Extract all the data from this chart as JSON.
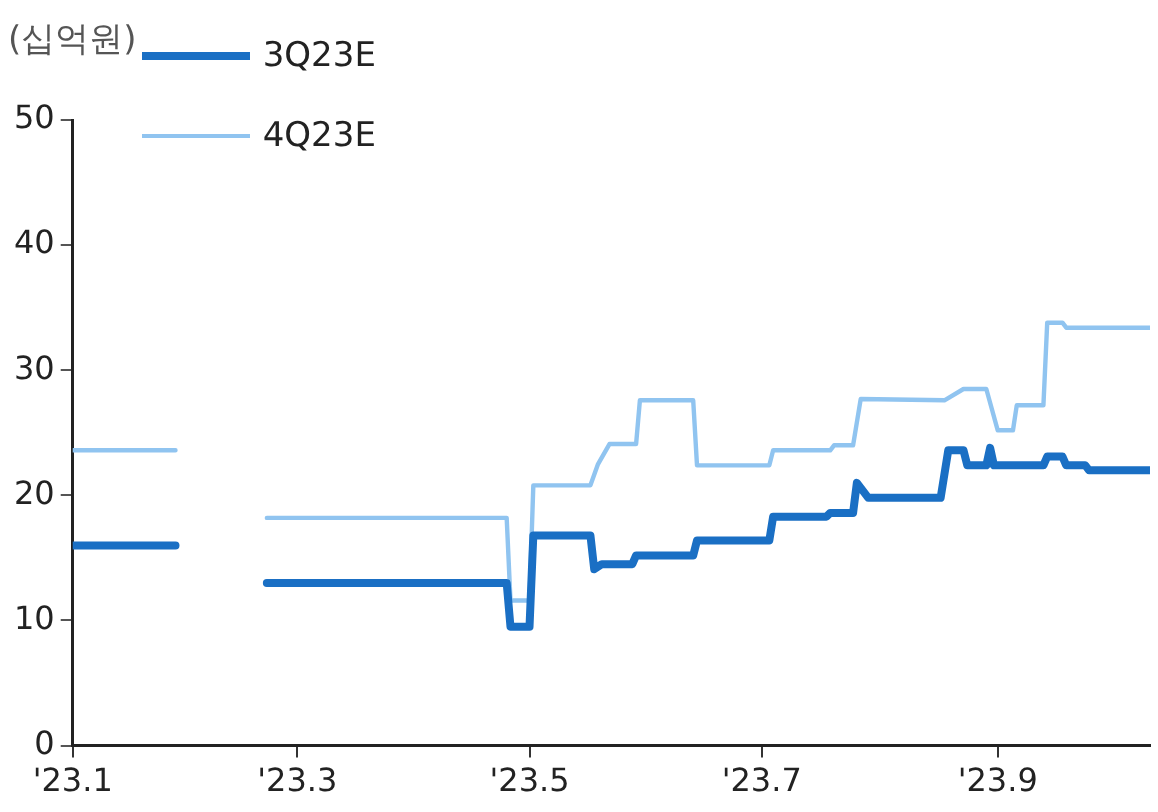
{
  "chart_data": {
    "type": "line",
    "ylabel": "(십억원)",
    "legend": "top left",
    "grid": false,
    "marker": "none",
    "line_style": "solid",
    "xlim": [
      "2023-01-01",
      "2023-10-11"
    ],
    "xticks": [
      {
        "value": "2023-01-01",
        "label": "'23.1"
      },
      {
        "value": "2023-03-01",
        "label": "'23.3"
      },
      {
        "value": "2023-05-01",
        "label": "'23.5"
      },
      {
        "value": "2023-07-01",
        "label": "'23.7"
      },
      {
        "value": "2023-09-01",
        "label": "'23.9"
      }
    ],
    "ylim": [
      0,
      50
    ],
    "yticks": [
      0,
      10,
      20,
      30,
      40,
      50
    ],
    "series": [
      {
        "name": "3Q23E",
        "color": "#1a6fc4",
        "x": [
          "2023-01-01",
          "2023-01-28",
          "2023-02-08",
          "2023-02-21",
          "2023-04-25",
          "2023-04-26",
          "2023-05-01",
          "2023-05-02",
          "2023-05-17",
          "2023-05-18",
          "2023-05-20",
          "2023-05-28",
          "2023-05-29",
          "2023-06-13",
          "2023-06-14",
          "2023-07-03",
          "2023-07-04",
          "2023-07-18",
          "2023-07-19",
          "2023-07-25",
          "2023-07-26",
          "2023-07-29",
          "2023-08-17",
          "2023-08-19",
          "2023-08-23",
          "2023-08-24",
          "2023-08-29",
          "2023-08-30",
          "2023-08-31",
          "2023-09-13",
          "2023-09-14",
          "2023-09-18",
          "2023-09-19",
          "2023-09-24",
          "2023-09-25",
          "2023-10-11"
        ],
        "values": [
          16,
          16,
          null,
          13,
          13,
          9.5,
          9.5,
          16.8,
          16.8,
          14.1,
          14.5,
          14.5,
          15.2,
          15.2,
          16.4,
          16.4,
          18.3,
          18.3,
          18.6,
          18.6,
          21.0,
          19.8,
          19.8,
          23.6,
          23.6,
          22.4,
          22.4,
          23.8,
          22.4,
          22.4,
          23.1,
          23.1,
          22.4,
          22.4,
          22.0,
          22.0
        ]
      },
      {
        "name": "4Q23E",
        "color": "#90c4f0",
        "x": [
          "2023-01-01",
          "2023-01-28",
          "2023-02-08",
          "2023-02-21",
          "2023-04-25",
          "2023-04-26",
          "2023-05-01",
          "2023-05-02",
          "2023-05-17",
          "2023-05-19",
          "2023-05-22",
          "2023-05-29",
          "2023-05-30",
          "2023-06-13",
          "2023-06-14",
          "2023-07-03",
          "2023-07-04",
          "2023-07-19",
          "2023-07-20",
          "2023-07-25",
          "2023-07-27",
          "2023-08-18",
          "2023-08-23",
          "2023-08-29",
          "2023-09-01",
          "2023-09-05",
          "2023-09-06",
          "2023-09-13",
          "2023-09-14",
          "2023-09-18",
          "2023-09-19",
          "2023-10-11"
        ],
        "values": [
          23.6,
          23.6,
          null,
          18.2,
          18.2,
          11.6,
          11.6,
          20.8,
          20.8,
          22.5,
          24.1,
          24.1,
          27.6,
          27.6,
          22.4,
          22.4,
          23.6,
          23.6,
          24.0,
          24.0,
          27.7,
          27.6,
          28.5,
          28.5,
          25.2,
          25.2,
          27.2,
          27.2,
          33.8,
          33.8,
          33.4,
          33.4
        ]
      }
    ]
  }
}
